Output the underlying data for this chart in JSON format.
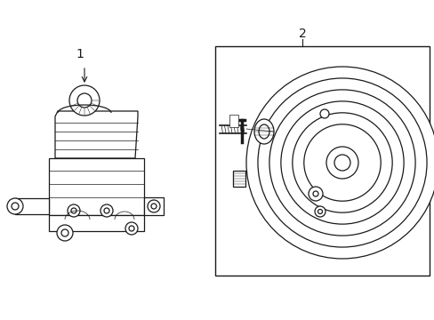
{
  "bg_color": "#ffffff",
  "line_color": "#1a1a1a",
  "label1": "1",
  "label2": "2",
  "lw_main": 0.9,
  "lw_thin": 0.5,
  "label_fontsize": 10
}
